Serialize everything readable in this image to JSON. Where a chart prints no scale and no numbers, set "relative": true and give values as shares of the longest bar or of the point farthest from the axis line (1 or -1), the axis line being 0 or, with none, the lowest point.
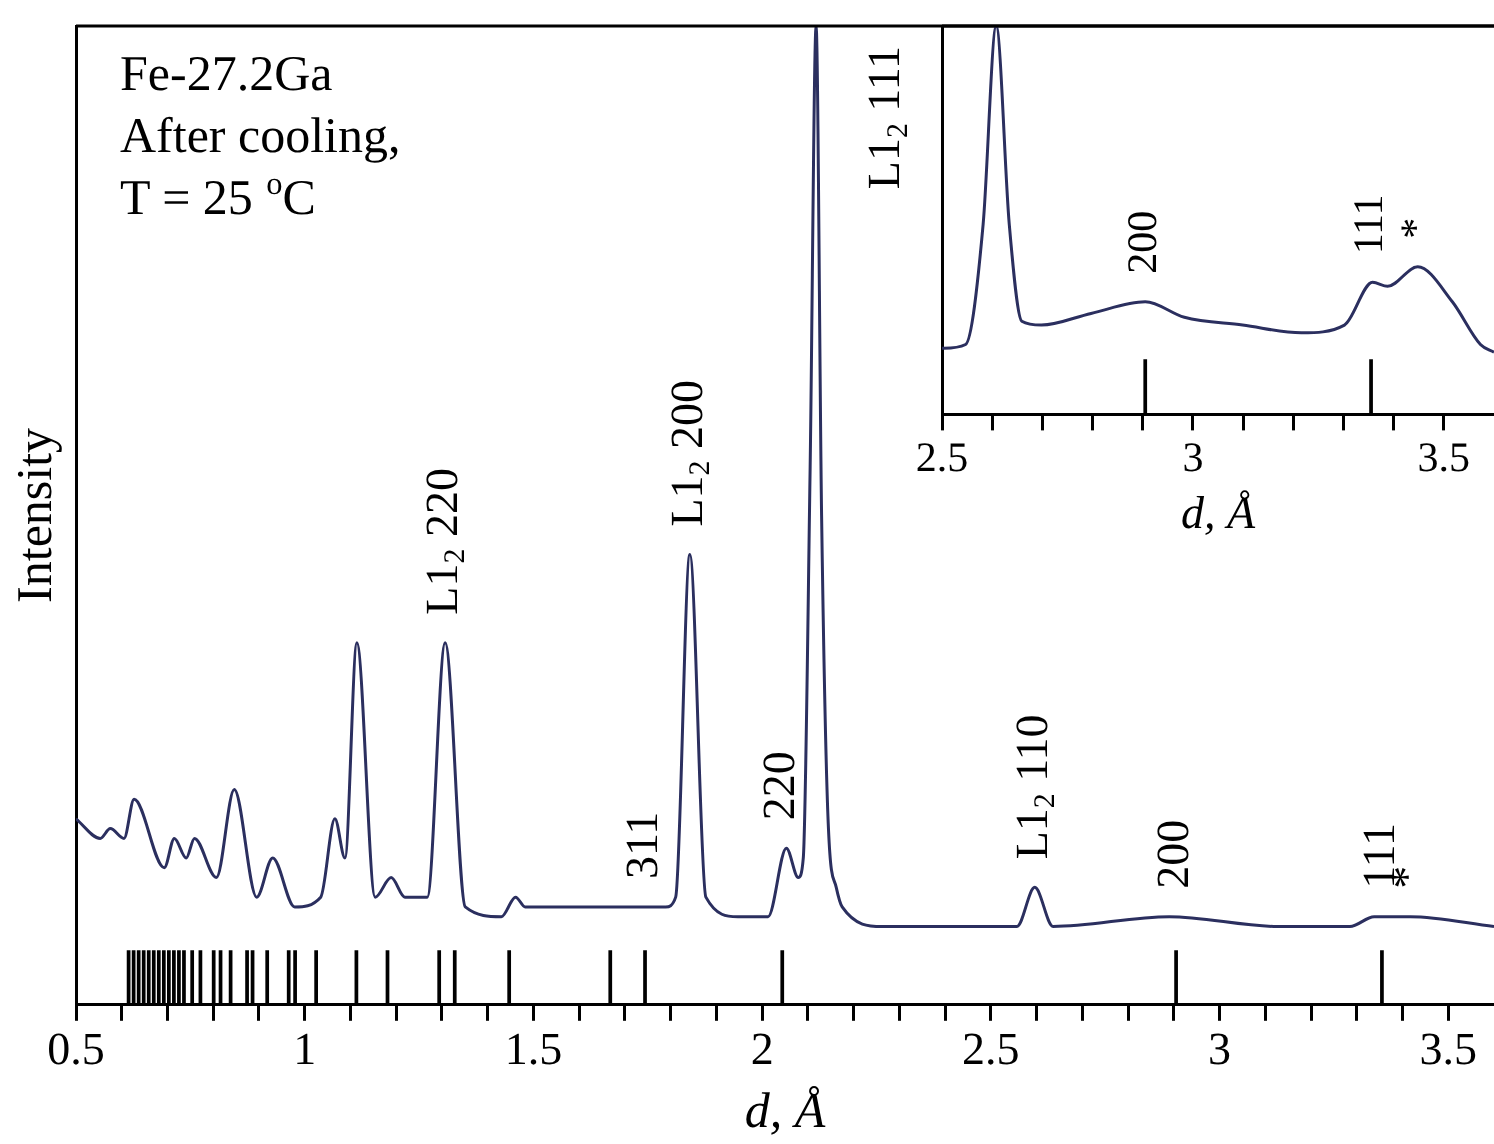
{
  "chart_data": [
    {
      "type": "line",
      "relative": true,
      "xlabel": "d, Å",
      "ylabel": "Intensity",
      "xlim": [
        0.5,
        3.6
      ],
      "xticks": [
        0.5,
        {
          "value": 0.6,
          "label": null
        },
        {
          "value": 0.7,
          "label": null
        },
        {
          "value": 0.8,
          "label": null
        },
        {
          "value": 0.9,
          "label": null
        },
        1,
        {
          "value": 1.1,
          "label": null
        },
        {
          "value": 1.2,
          "label": null
        },
        {
          "value": 1.3,
          "label": null
        },
        {
          "value": 1.4,
          "label": null
        },
        1.5,
        {
          "value": 1.6,
          "label": null
        },
        {
          "value": 1.7,
          "label": null
        },
        {
          "value": 1.8,
          "label": null
        },
        {
          "value": 1.9,
          "label": null
        },
        2,
        {
          "value": 2.1,
          "label": null
        },
        {
          "value": 2.2,
          "label": null
        },
        {
          "value": 2.3,
          "label": null
        },
        {
          "value": 2.4,
          "label": null
        },
        2.5,
        {
          "value": 2.6,
          "label": null
        },
        {
          "value": 2.7,
          "label": null
        },
        {
          "value": 2.8,
          "label": null
        },
        {
          "value": 2.9,
          "label": null
        },
        3,
        {
          "value": 3.1,
          "label": null
        },
        {
          "value": 3.2,
          "label": null
        },
        {
          "value": 3.3,
          "label": null
        },
        {
          "value": 3.4,
          "label": null
        },
        3.5
      ],
      "grid": false,
      "legend": false,
      "annotations": [
        "Fe-27.2Ga",
        "After cooling,",
        "T = 25 $^{o}$C",
        {
          "text": "L1$_{2}$ 220",
          "x": 1.307,
          "y": 0.37
        },
        {
          "text": "311",
          "x": 1.744,
          "y": 0.055
        },
        {
          "text": "L1$_{2}$ 200",
          "x": 1.842,
          "y": 0.46
        },
        {
          "text": "220",
          "x": 2.044,
          "y": 0.055
        },
        {
          "text": "L1$_{2}$ 111",
          "x": 2.118,
          "y": 1
        },
        {
          "text": "L1$_{2}$ 110",
          "x": 2.596,
          "y": 0.12
        },
        {
          "text": "200",
          "x": 2.905,
          "y": 0.055
        },
        {
          "text": "111",
          "x": 3.355,
          "y": 0.055
        },
        {
          "text": "*",
          "x": 3.417,
          "y": 0.09
        }
      ],
      "series": [
        {
          "color": "#2b2f5f",
          "x": [
            0.5,
            0.553,
            0.575,
            0.605,
            0.627,
            0.693,
            0.715,
            0.741,
            0.759,
            0.807,
            0.846,
            0.895,
            0.93,
            0.978,
            1.035,
            1.066,
            1.088,
            1.114,
            1.154,
            1.189,
            1.219,
            1.268,
            1.307,
            1.351,
            1.43,
            1.461,
            1.482,
            1.509,
            1.618,
            1.649,
            1.789,
            1.811,
            1.842,
            1.877,
            1.947,
            2.013,
            2.053,
            2.079,
            2.09,
            2.105,
            2.118,
            2.13,
            2.145,
            2.162,
            2.175,
            2.263,
            2.395,
            2.557,
            2.596,
            2.636,
            2.89,
            3.127,
            3.285,
            3.338,
            3.417,
            3.6
          ],
          "values": [
            0.19,
            0.17,
            0.18,
            0.17,
            0.21,
            0.14,
            0.17,
            0.15,
            0.17,
            0.13,
            0.22,
            0.11,
            0.15,
            0.1,
            0.11,
            0.19,
            0.15,
            0.37,
            0.11,
            0.13,
            0.11,
            0.11,
            0.37,
            0.1,
            0.09,
            0.11,
            0.1,
            0.1,
            0.1,
            0.1,
            0.1,
            0.11,
            0.46,
            0.11,
            0.09,
            0.09,
            0.16,
            0.13,
            0.15,
            0.55,
            1,
            0.5,
            0.18,
            0.12,
            0.1,
            0.08,
            0.08,
            0.08,
            0.12,
            0.08,
            0.09,
            0.08,
            0.08,
            0.09,
            0.09,
            0.08
          ]
        },
        {
          "type": "bar",
          "color": "#000000",
          "x": [
            0.615,
            0.626,
            0.637,
            0.648,
            0.659,
            0.67,
            0.681,
            0.692,
            0.703,
            0.714,
            0.725,
            0.736,
            0.754,
            0.772,
            0.801,
            0.816,
            0.838,
            0.874,
            0.886,
            0.918,
            0.965,
            0.979,
            1.025,
            1.113,
            1.181,
            1.294,
            1.328,
            1.447,
            1.668,
            1.744,
            2.044,
            2.905,
            3.355
          ],
          "values": [
            0.055,
            0.055,
            0.055,
            0.055,
            0.055,
            0.055,
            0.055,
            0.055,
            0.055,
            0.055,
            0.055,
            0.055,
            0.055,
            0.055,
            0.055,
            0.055,
            0.055,
            0.055,
            0.055,
            0.055,
            0.055,
            0.055,
            0.055,
            0.055,
            0.055,
            0.055,
            0.055,
            0.055,
            0.055,
            0.055,
            0.055,
            0.055,
            0.055
          ]
        }
      ]
    },
    {
      "type": "line",
      "relative": true,
      "xlabel": "d, Å",
      "xlim": [
        2.5,
        3.6
      ],
      "xticks": [
        2.5,
        {
          "value": 2.6,
          "label": null
        },
        {
          "value": 2.7,
          "label": null
        },
        {
          "value": 2.8,
          "label": null
        },
        {
          "value": 2.9,
          "label": null
        },
        3,
        {
          "value": 3.1,
          "label": null
        },
        {
          "value": 3.2,
          "label": null
        },
        {
          "value": 3.3,
          "label": null
        },
        {
          "value": 3.4,
          "label": null
        },
        3.5
      ],
      "grid": false,
      "legend": false,
      "annotations": [
        {
          "text": "200",
          "x": 2.905,
          "y": 0.14
        },
        {
          "text": "111",
          "x": 3.355,
          "y": 0.14
        },
        {
          "text": "*",
          "x": 3.448,
          "y": 0.38
        }
      ],
      "series": [
        {
          "color": "#2b2f5f",
          "x": [
            2.5,
            2.547,
            2.582,
            2.608,
            2.634,
            2.659,
            2.698,
            2.797,
            2.905,
            2.983,
            3.099,
            3.216,
            3.302,
            3.358,
            3.388,
            3.448,
            3.517,
            3.573,
            3.6
          ],
          "values": [
            0.17,
            0.18,
            0.49,
            1,
            0.49,
            0.24,
            0.23,
            0.26,
            0.29,
            0.25,
            0.23,
            0.21,
            0.23,
            0.34,
            0.33,
            0.38,
            0.29,
            0.18,
            0.16
          ]
        },
        {
          "type": "bar",
          "color": "#000000",
          "x": [
            2.905,
            3.355
          ],
          "values": [
            0.14,
            0.14
          ]
        }
      ]
    }
  ]
}
